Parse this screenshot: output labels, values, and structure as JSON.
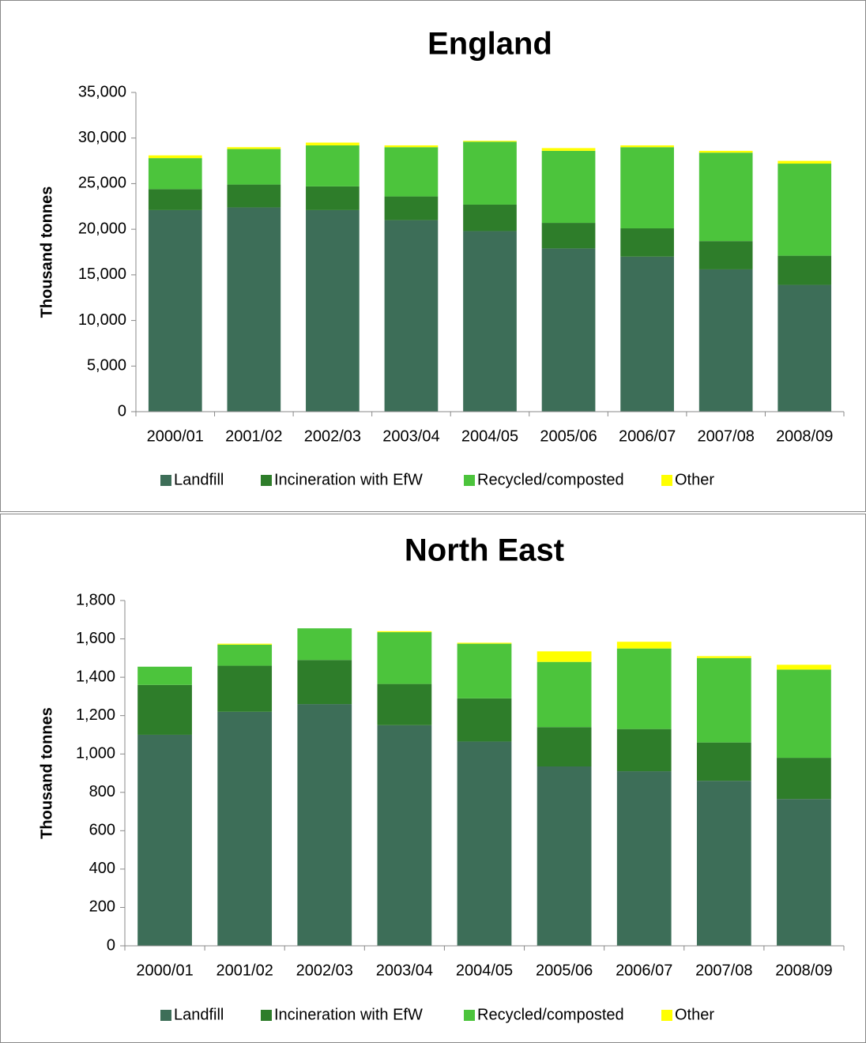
{
  "chart_data": [
    {
      "type": "stacked_bar",
      "title": "England",
      "y_label": "Thousand tonnes",
      "categories": [
        "2000/01",
        "2001/02",
        "2002/03",
        "2003/04",
        "2004/05",
        "2005/06",
        "2006/07",
        "2007/08",
        "2008/09"
      ],
      "series": [
        {
          "name": "Landfill",
          "color": "#3d6e58",
          "values": [
            22100,
            22400,
            22100,
            21000,
            19800,
            17900,
            17000,
            15600,
            13900
          ]
        },
        {
          "name": "Incineration with EfW",
          "color": "#2e7d2a",
          "values": [
            2300,
            2500,
            2600,
            2600,
            2900,
            2800,
            3100,
            3100,
            3200
          ]
        },
        {
          "name": "Recycled/composted",
          "color": "#4cc43c",
          "values": [
            3400,
            3900,
            4500,
            5400,
            6900,
            7900,
            8900,
            9700,
            10100
          ]
        },
        {
          "name": "Other",
          "color": "#ffff00",
          "values": [
            300,
            200,
            300,
            200,
            100,
            300,
            200,
            200,
            300
          ]
        }
      ],
      "ylim": [
        0,
        35000
      ],
      "yticks": [
        0,
        {
          "value": 5000,
          "label": "5,000"
        },
        {
          "value": 10000,
          "label": "10,000"
        },
        {
          "value": 15000,
          "label": "15,000"
        },
        {
          "value": 20000,
          "label": "20,000"
        },
        {
          "value": 25000,
          "label": "25,000"
        },
        {
          "value": 30000,
          "label": "30,000"
        },
        {
          "value": 35000,
          "label": "35,000"
        }
      ],
      "legend": "bottom"
    },
    {
      "type": "stacked_bar",
      "title": "North East",
      "y_label": "Thousand tonnes",
      "categories": [
        "2000/01",
        "2001/02",
        "2002/03",
        "2003/04",
        "2004/05",
        "2005/06",
        "2006/07",
        "2007/08",
        "2008/09"
      ],
      "series": [
        {
          "name": "Landfill",
          "color": "#3d6e58",
          "values": [
            1100,
            1220,
            1260,
            1150,
            1065,
            935,
            910,
            860,
            765
          ]
        },
        {
          "name": "Incineration with EfW",
          "color": "#2e7d2a",
          "values": [
            260,
            240,
            230,
            215,
            225,
            205,
            220,
            200,
            215
          ]
        },
        {
          "name": "Recycled/composted",
          "color": "#4cc43c",
          "values": [
            95,
            110,
            165,
            270,
            285,
            340,
            420,
            440,
            460
          ]
        },
        {
          "name": "Other",
          "color": "#ffff00",
          "values": [
            0,
            5,
            0,
            5,
            5,
            55,
            35,
            10,
            25
          ]
        }
      ],
      "ylim": [
        0,
        1800
      ],
      "yticks": [
        0,
        200,
        400,
        600,
        800,
        {
          "value": 1000,
          "label": "1,000"
        },
        {
          "value": 1200,
          "label": "1,200"
        },
        {
          "value": 1400,
          "label": "1,400"
        },
        {
          "value": 1600,
          "label": "1,600"
        },
        {
          "value": 1800,
          "label": "1,800"
        }
      ],
      "legend": "bottom"
    }
  ]
}
